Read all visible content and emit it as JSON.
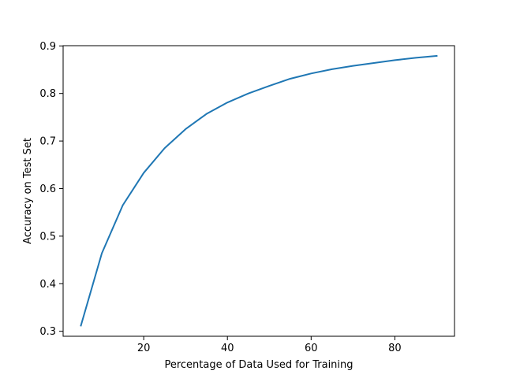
{
  "chart_data": {
    "type": "line",
    "title": "",
    "xlabel": "Percentage of Data Used for Training",
    "ylabel": "Accuracy on Test Set",
    "xlim": [
      0.75,
      94.25
    ],
    "ylim": [
      0.2895,
      0.9005
    ],
    "xticks": [
      20,
      40,
      60,
      80
    ],
    "yticks": [
      0.3,
      0.4,
      0.5,
      0.6,
      0.7,
      0.8,
      0.9
    ],
    "xtick_labels": [
      "20",
      "40",
      "60",
      "80"
    ],
    "ytick_labels": [
      "0.3",
      "0.4",
      "0.5",
      "0.6",
      "0.7",
      "0.8",
      "0.9"
    ],
    "grid": false,
    "legend": false,
    "series": [
      {
        "color": "#1f77b4",
        "x": [
          5,
          10,
          15,
          20,
          25,
          30,
          35,
          40,
          45,
          50,
          55,
          60,
          65,
          70,
          75,
          80,
          85,
          90
        ],
        "y": [
          0.312,
          0.464,
          0.565,
          0.633,
          0.685,
          0.725,
          0.757,
          0.781,
          0.8,
          0.816,
          0.831,
          0.842,
          0.851,
          0.858,
          0.864,
          0.87,
          0.875,
          0.879
        ]
      }
    ]
  }
}
